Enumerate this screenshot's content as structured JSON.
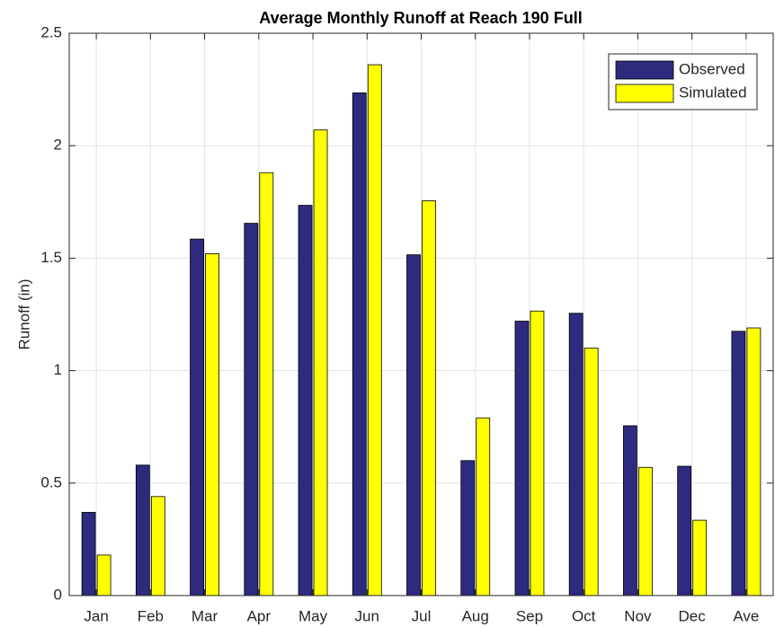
{
  "chart_data": {
    "type": "bar",
    "title": "Average Monthly Runoff at Reach 190 Full",
    "y_label": "Runoff (in)",
    "categories": [
      "Jan",
      "Feb",
      "Mar",
      "Apr",
      "May",
      "Jun",
      "Jul",
      "Aug",
      "Sep",
      "Oct",
      "Nov",
      "Dec",
      "Ave"
    ],
    "series": [
      {
        "name": "Observed",
        "color": "#2e2a7e",
        "values": [
          0.37,
          0.58,
          1.585,
          1.655,
          1.735,
          2.235,
          1.515,
          0.6,
          1.22,
          1.255,
          0.755,
          0.575,
          1.175
        ]
      },
      {
        "name": "Simulated",
        "color": "#ffff00",
        "values": [
          0.18,
          0.44,
          1.52,
          1.88,
          2.07,
          2.36,
          1.755,
          0.79,
          1.265,
          1.1,
          0.57,
          0.335,
          1.19
        ]
      }
    ],
    "ylim": [
      0,
      2.5
    ],
    "yticks": [
      0,
      0.5,
      1,
      1.5,
      2,
      2.5
    ],
    "grid": true,
    "legend": "upper right"
  }
}
